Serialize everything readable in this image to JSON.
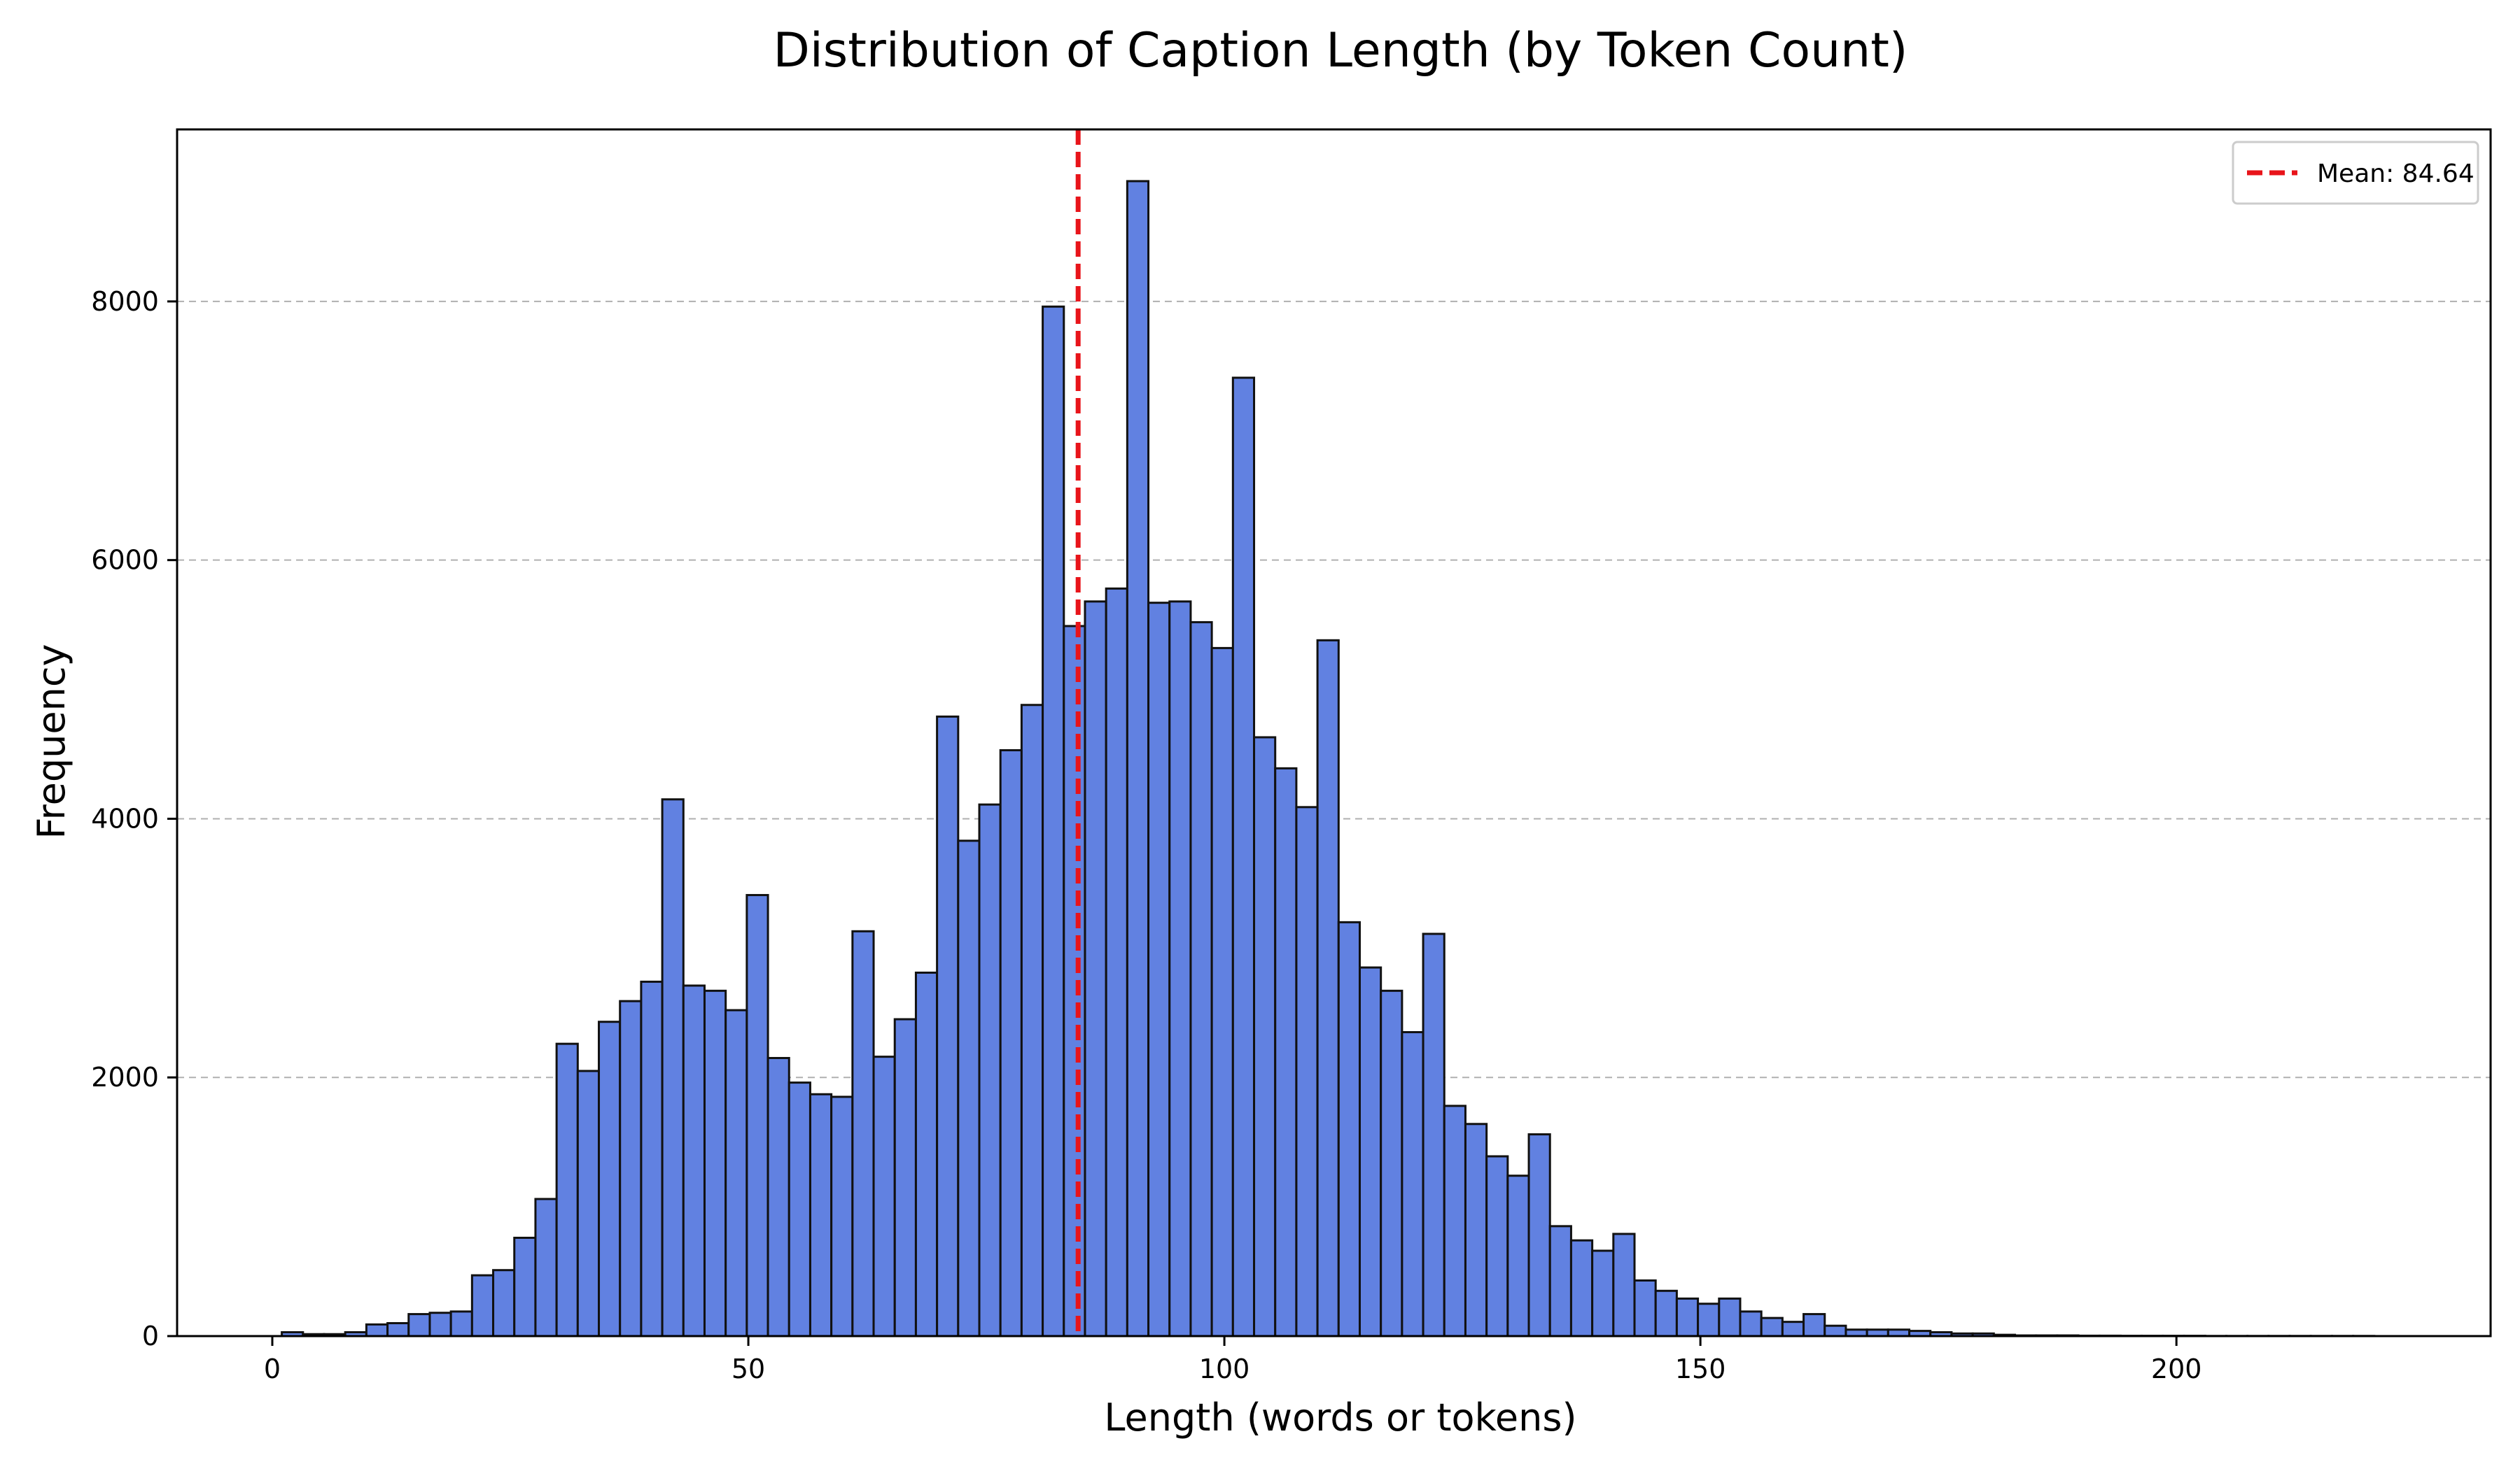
{
  "chart_data": {
    "type": "bar",
    "title": "Distribution of Caption Length (by Token Count)",
    "xlabel": "Length (words or tokens)",
    "ylabel": "Frequency",
    "xlim": [
      -10,
      233
    ],
    "ylim": [
      0,
      9330
    ],
    "x_ticks": [
      0,
      50,
      100,
      150,
      200
    ],
    "y_ticks": [
      0,
      2000,
      4000,
      6000,
      8000
    ],
    "grid": "y-dashed",
    "bin_start": 1,
    "bin_width": 2.22,
    "values": [
      30,
      15,
      15,
      30,
      90,
      100,
      170,
      180,
      190,
      470,
      510,
      760,
      1060,
      2260,
      2050,
      2430,
      2590,
      2740,
      4150,
      2710,
      2670,
      2520,
      3410,
      2150,
      1960,
      1870,
      1850,
      3130,
      2160,
      2450,
      2810,
      4790,
      3830,
      4110,
      4530,
      4880,
      7960,
      5490,
      5680,
      5780,
      8930,
      5670,
      5680,
      5520,
      5320,
      7410,
      4630,
      4390,
      4090,
      5380,
      3200,
      2850,
      2670,
      2350,
      3110,
      1780,
      1640,
      1390,
      1240,
      1560,
      850,
      740,
      660,
      790,
      430,
      350,
      290,
      250,
      290,
      190,
      140,
      110,
      170,
      80,
      50,
      50,
      50,
      40,
      30,
      20,
      20,
      10,
      5,
      5,
      5,
      3,
      3,
      2,
      2,
      2,
      2,
      1,
      1,
      1,
      1,
      1,
      1,
      1,
      1
    ],
    "bar_color": "#6181e1",
    "bar_edge_color": "#111111",
    "mean_line": {
      "value": 84.64,
      "label": "Mean: 84.64",
      "color": "#e8141a"
    },
    "legend_position": "top-right"
  }
}
